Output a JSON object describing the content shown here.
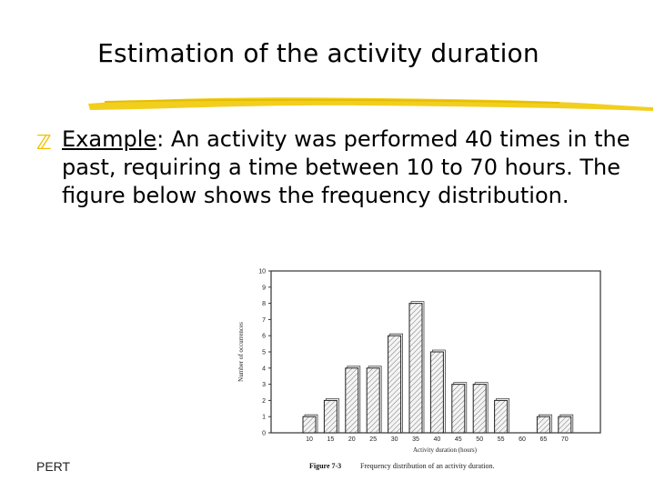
{
  "slide": {
    "title": "Estimation of the activity duration",
    "example_label": "Example",
    "example_rest": ":  An activity was performed 40 times in the past, requiring a time between 10 to 70 hours.  The figure below shows the frequency distribution.",
    "footer": "PERT",
    "bullet_icon": "z-bullet-icon",
    "accent_color": "#f0c000"
  },
  "chart_data": {
    "type": "bar",
    "categories": [
      "10",
      "15",
      "20",
      "25",
      "30",
      "35",
      "40",
      "45",
      "50",
      "55",
      "60",
      "65",
      "70"
    ],
    "values": [
      1,
      2,
      4,
      4,
      6,
      8,
      5,
      3,
      3,
      2,
      0,
      1,
      1
    ],
    "ylabel": "Number of occurrences",
    "xlabel": "Activity duration (hours)",
    "ylim": [
      0,
      10
    ],
    "y_ticks": [
      "0",
      "1",
      "2",
      "3",
      "4",
      "5",
      "6",
      "7",
      "8",
      "9",
      "10"
    ],
    "caption_label": "Figure 7-3",
    "caption_text": "Frequency distribution of an activity duration.",
    "grid": false
  }
}
